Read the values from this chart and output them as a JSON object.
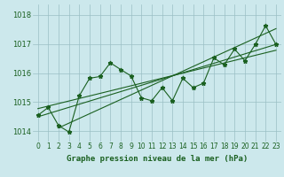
{
  "title": "Graphe pression niveau de la mer (hPa)",
  "bg_color": "#cce8ec",
  "plot_bg_color": "#cce8ec",
  "bottom_bar_color": "#1a6020",
  "line_color": "#1a6020",
  "tick_label_color": "#1a6020",
  "ylim": [
    1013.65,
    1018.35
  ],
  "xlim": [
    -0.5,
    23.5
  ],
  "yticks": [
    1014,
    1015,
    1016,
    1017,
    1018
  ],
  "xticks": [
    0,
    1,
    2,
    3,
    4,
    5,
    6,
    7,
    8,
    9,
    10,
    11,
    12,
    13,
    14,
    15,
    16,
    17,
    18,
    19,
    20,
    21,
    22,
    23
  ],
  "pressure_values": [
    1014.55,
    1014.82,
    1014.2,
    1013.98,
    1015.22,
    1015.82,
    1015.88,
    1016.35,
    1016.12,
    1015.9,
    1015.15,
    1015.05,
    1015.5,
    1015.05,
    1015.82,
    1015.5,
    1015.65,
    1016.52,
    1016.28,
    1016.82,
    1016.42,
    1016.98,
    1017.62,
    1016.98
  ],
  "trend_line1": [
    [
      0,
      1014.5
    ],
    [
      23,
      1016.98
    ]
  ],
  "trend_line2": [
    [
      0,
      1014.78
    ],
    [
      23,
      1016.78
    ]
  ],
  "trend_line3": [
    [
      2,
      1014.12
    ],
    [
      23,
      1017.52
    ]
  ],
  "grid_color": "#9abfc5",
  "grid_linewidth": 0.5,
  "line_linewidth": 0.8,
  "marker_size": 3.5,
  "title_fontsize": 6.5,
  "tick_fontsize": 5.5
}
